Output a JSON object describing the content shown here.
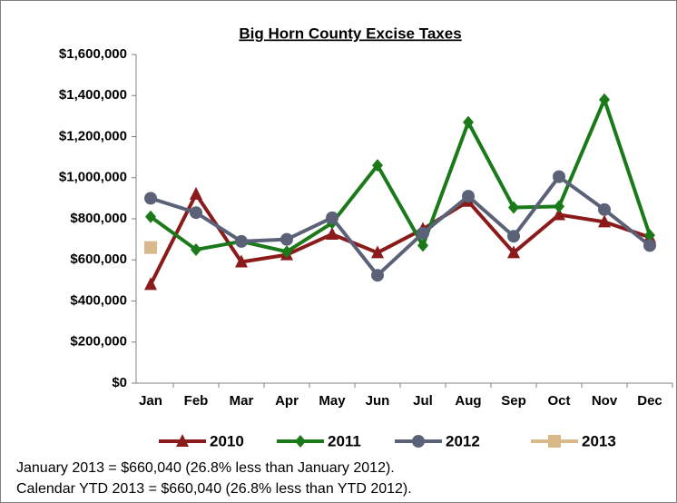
{
  "chart_data": {
    "type": "line",
    "title": "Big Horn County Excise Taxes",
    "categories": [
      "Jan",
      "Feb",
      "Mar",
      "Apr",
      "May",
      "Jun",
      "Jul",
      "Aug",
      "Sep",
      "Oct",
      "Nov",
      "Dec"
    ],
    "series": [
      {
        "name": "2010",
        "color": "#8b1a1a",
        "marker": "triangle",
        "values": [
          480000,
          920000,
          590000,
          625000,
          725000,
          635000,
          750000,
          885000,
          635000,
          820000,
          785000,
          710000
        ]
      },
      {
        "name": "2011",
        "color": "#1a7a1a",
        "marker": "diamond",
        "values": [
          810000,
          650000,
          690000,
          640000,
          780000,
          1060000,
          670000,
          1270000,
          855000,
          860000,
          1380000,
          720000
        ]
      },
      {
        "name": "2012",
        "color": "#5b6278",
        "marker": "circle",
        "values": [
          900000,
          830000,
          690000,
          700000,
          805000,
          525000,
          730000,
          910000,
          715000,
          1005000,
          845000,
          670000
        ]
      },
      {
        "name": "2013",
        "color": "#d9b98a",
        "marker": "square",
        "values": [
          660040,
          null,
          null,
          null,
          null,
          null,
          null,
          null,
          null,
          null,
          null,
          null
        ]
      }
    ],
    "ylim": [
      0,
      1600000
    ],
    "yticks": [
      {
        "value": 0,
        "label": "$0"
      },
      {
        "value": 200000,
        "label": "$200,000"
      },
      {
        "value": 400000,
        "label": "$400,000"
      },
      {
        "value": 600000,
        "label": "$600,000"
      },
      {
        "value": 800000,
        "label": "$800,000"
      },
      {
        "value": 1000000,
        "label": "$1,000,000"
      },
      {
        "value": 1200000,
        "label": "$1,200,000"
      },
      {
        "value": 1400000,
        "label": "$1,400,000"
      },
      {
        "value": 1600000,
        "label": "$1,600,000"
      }
    ],
    "legend": "bottom",
    "notes": [
      "January 2013 = $660,040 (26.8% less than January 2012).",
      "Calendar YTD 2013 = $660,040 (26.8% less than YTD 2012)."
    ]
  }
}
